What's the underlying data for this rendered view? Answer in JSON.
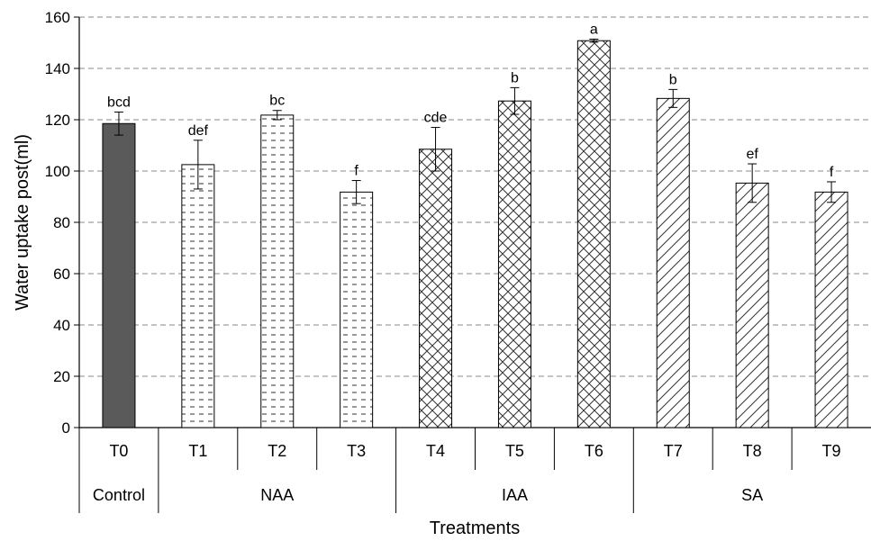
{
  "chart_data": {
    "type": "bar",
    "ylabel": "Water uptake post(ml)",
    "xlabel": "Treatments",
    "ylim": [
      0,
      160
    ],
    "yticks": [
      0,
      20,
      40,
      60,
      80,
      100,
      120,
      140,
      160
    ],
    "grid": true,
    "categories": [
      "T0",
      "T1",
      "T2",
      "T3",
      "T4",
      "T5",
      "T6",
      "T7",
      "T8",
      "T9"
    ],
    "values": [
      118.5,
      102.5,
      121.8,
      91.8,
      108.5,
      127.3,
      150.8,
      128.3,
      95.3,
      91.8
    ],
    "errors": [
      4.5,
      9.5,
      1.8,
      4.5,
      8.5,
      5.2,
      0.6,
      3.5,
      7.5,
      4.0
    ],
    "significance": [
      "bcd",
      "def",
      "bc",
      "f",
      "cde",
      "b",
      "a",
      "b",
      "ef",
      "f"
    ],
    "patterns": [
      "solid",
      "dash",
      "dash",
      "dash",
      "cross",
      "cross",
      "cross",
      "diag",
      "diag",
      "diag"
    ],
    "groups": [
      {
        "name": "Control",
        "start": 0,
        "end": 0
      },
      {
        "name": "NAA",
        "start": 1,
        "end": 3
      },
      {
        "name": "IAA",
        "start": 4,
        "end": 6
      },
      {
        "name": "SA",
        "start": 7,
        "end": 9
      }
    ],
    "colors": {
      "solid_fill": "#5a5a5a",
      "bar_stroke": "#000000",
      "grid": "#888888",
      "pattern_stroke": "#333333"
    }
  }
}
